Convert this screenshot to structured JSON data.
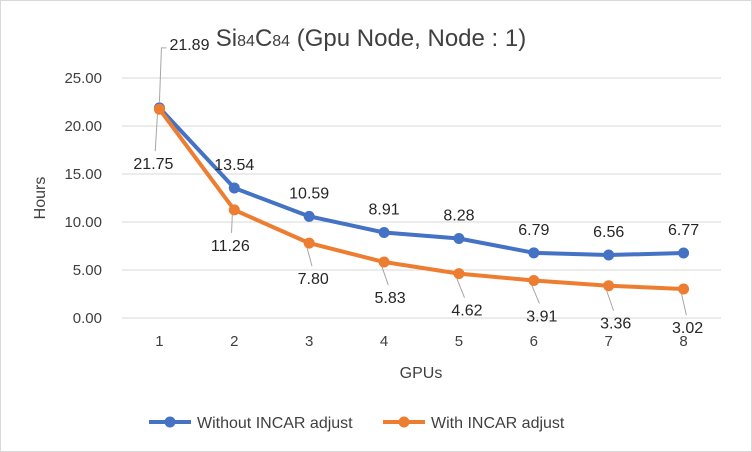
{
  "chart_data": {
    "type": "line",
    "title_parts": [
      "Si",
      "84",
      "C",
      "84",
      " (Gpu Node, Node : 1)"
    ],
    "xlabel": "GPUs",
    "ylabel": "Hours",
    "categories": [
      "1",
      "2",
      "3",
      "4",
      "5",
      "6",
      "7",
      "8"
    ],
    "ylim": [
      0,
      25
    ],
    "yticks": [
      "0.00",
      "5.00",
      "10.00",
      "15.00",
      "20.00",
      "25.00"
    ],
    "grid": "horizontal",
    "legend": "bottom",
    "series": [
      {
        "name": "Without INCAR adjust",
        "color": "#4472c4",
        "values": [
          21.89,
          13.54,
          10.59,
          8.91,
          8.28,
          6.79,
          6.56,
          6.77
        ],
        "labels": [
          "21.89",
          "13.54",
          "10.59",
          "8.91",
          "8.28",
          "6.79",
          "6.56",
          "6.77"
        ]
      },
      {
        "name": "With INCAR adjust",
        "color": "#ed7d31",
        "values": [
          21.75,
          11.26,
          7.8,
          5.83,
          4.62,
          3.91,
          3.36,
          3.02
        ],
        "labels": [
          "21.75",
          "11.26",
          "7.80",
          "5.83",
          "4.62",
          "3.91",
          "3.36",
          "3.02"
        ]
      }
    ]
  }
}
